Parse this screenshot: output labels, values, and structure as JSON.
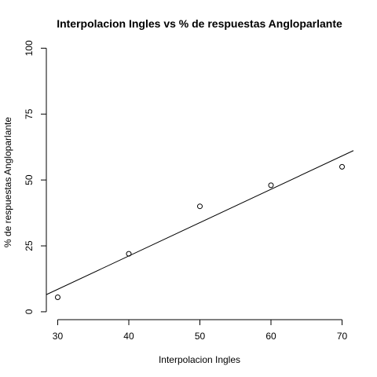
{
  "chart_data": {
    "type": "scatter",
    "title": "Interpolacion Ingles vs % de respuestas Angloparlante",
    "xlabel": "Interpolacion Ingles",
    "ylabel": "% de respuestas Angloparlante",
    "xlim": [
      28.4,
      71.6
    ],
    "ylim": [
      -3.0,
      101.0
    ],
    "x_ticks": [
      30,
      40,
      50,
      60,
      70
    ],
    "y_ticks": [
      0,
      25,
      50,
      75,
      100
    ],
    "x": [
      30,
      40,
      50,
      60,
      70
    ],
    "y": [
      5.5,
      22,
      40,
      48,
      55
    ],
    "fit_line": {
      "intercept": -29.43,
      "slope": 1.265
    },
    "grid": false
  }
}
